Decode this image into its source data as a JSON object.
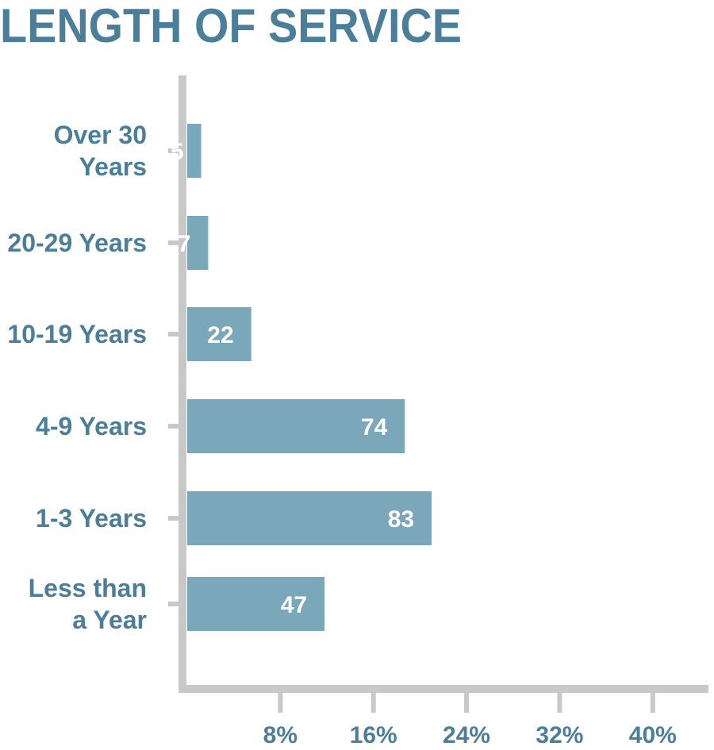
{
  "chart_data": {
    "type": "bar",
    "orientation": "horizontal",
    "title": "LENGTH OF SERVICE",
    "categories": [
      [
        "Over 30",
        "Years"
      ],
      [
        "20-29 Years"
      ],
      [
        "10-19 Years"
      ],
      [
        "4-9 Years"
      ],
      [
        "1-3 Years"
      ],
      [
        "Less than",
        "a Year"
      ]
    ],
    "percents": [
      1.2,
      1.8,
      5.5,
      18.7,
      21.0,
      11.8
    ],
    "data_labels": [
      "5",
      "7",
      "22",
      "74",
      "83",
      "47"
    ],
    "x_ticks": [
      8,
      16,
      24,
      32,
      40
    ],
    "x_tick_labels": [
      "8%",
      "16%",
      "24%",
      "32%",
      "40%"
    ],
    "xlim": [
      0,
      44
    ],
    "grid": false,
    "legend": "none",
    "colors": {
      "bar": "#7aa7b9",
      "axis": "#c8c8c8",
      "text": "#4b7e99"
    }
  }
}
